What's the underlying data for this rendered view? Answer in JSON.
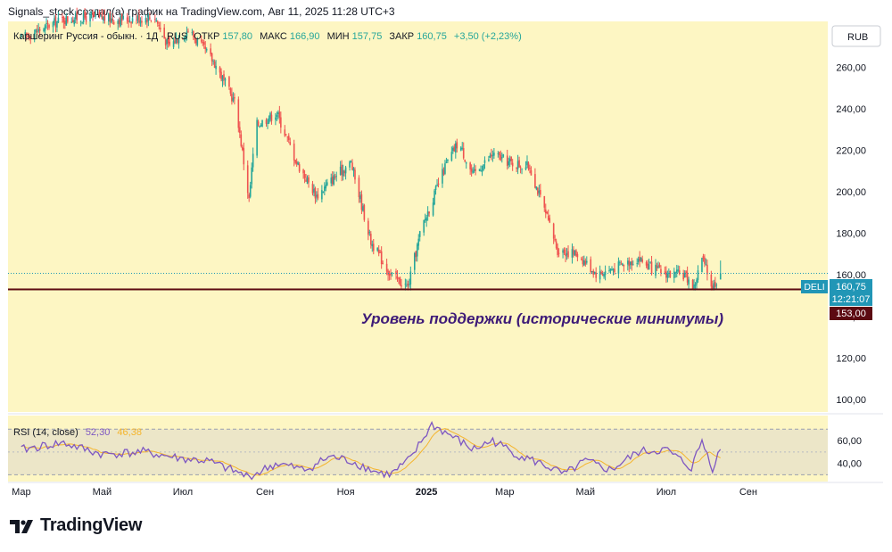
{
  "header": {
    "caption": "Signals_stock создал(а) график на TradingView.com, Авг 11, 2025 11:28 UTC+3"
  },
  "legend": {
    "instrument": "Каршеринг Руссия - обыкн. · 1Д · RUS",
    "open_label": "ОТКР",
    "open_value": "157,80",
    "high_label": "МАКС",
    "high_value": "166,90",
    "low_label": "МИН",
    "low_value": "157,75",
    "close_label": "ЗАКР",
    "close_value": "160,75",
    "change": "+3,50 (+2,23%)"
  },
  "currency_button": "RUB",
  "price_tag": {
    "ticker": "DELI",
    "price": "160,75",
    "countdown": "12:21:07"
  },
  "support_tag": "153,00",
  "annotation": "Уровень поддержки (исторические минимумы)",
  "rsi": {
    "title": "RSI (14, close)",
    "value": "52,30",
    "ma_value": "46,38"
  },
  "brand": "TradingView",
  "colors": {
    "panel_bg": "#fdf6c3",
    "up": "#26a69a",
    "down": "#ef5350",
    "support_line": "#5c0a12",
    "annotation": "#3d1a78",
    "rsi_line": "#7e57c2",
    "rsi_ma": "#f5b52c",
    "rsi_band": "#ece6c8",
    "price_tag": "#2196b6"
  },
  "chart_data": {
    "type": "candlestick",
    "title": "Каршеринг Руссия - обыкн.",
    "timeframe": "1Д",
    "currency": "RUB",
    "y_ticks": [
      "100,00",
      "120,00",
      "140,00",
      "160,00",
      "180,00",
      "200,00",
      "220,00",
      "240,00",
      "260,00"
    ],
    "ylim": [
      94,
      282
    ],
    "x_ticks": [
      "Мар",
      "Май",
      "Июл",
      "Сен",
      "Ноя",
      "2025",
      "Мар",
      "Май",
      "Июл",
      "Сен"
    ],
    "support_level": 153.0,
    "last_price": 160.75,
    "price_path": [
      [
        "2024-03-01",
        274
      ],
      [
        "2024-03-15",
        278
      ],
      [
        "2024-04-01",
        283
      ],
      [
        "2024-04-20",
        284
      ],
      [
        "2024-05-15",
        283
      ],
      [
        "2024-06-10",
        284
      ],
      [
        "2024-06-20",
        270
      ],
      [
        "2024-07-05",
        278
      ],
      [
        "2024-07-25",
        262
      ],
      [
        "2024-08-10",
        242
      ],
      [
        "2024-08-20",
        196
      ],
      [
        "2024-08-25",
        232
      ],
      [
        "2024-09-10",
        238
      ],
      [
        "2024-09-25",
        214
      ],
      [
        "2024-10-10",
        198
      ],
      [
        "2024-10-25",
        208
      ],
      [
        "2024-11-05",
        214
      ],
      [
        "2024-11-20",
        176
      ],
      [
        "2024-12-05",
        160
      ],
      [
        "2024-12-18",
        154
      ],
      [
        "2024-12-28",
        182
      ],
      [
        "2025-01-15",
        212
      ],
      [
        "2025-01-25",
        224
      ],
      [
        "2025-02-05",
        208
      ],
      [
        "2025-02-20",
        218
      ],
      [
        "2025-03-05",
        214
      ],
      [
        "2025-03-20",
        212
      ],
      [
        "2025-04-10",
        172
      ],
      [
        "2025-04-25",
        170
      ],
      [
        "2025-05-10",
        160
      ],
      [
        "2025-05-25",
        164
      ],
      [
        "2025-06-10",
        168
      ],
      [
        "2025-06-20",
        163
      ],
      [
        "2025-07-05",
        160
      ],
      [
        "2025-07-15",
        160
      ],
      [
        "2025-07-22",
        154
      ],
      [
        "2025-07-28",
        168
      ],
      [
        "2025-08-05",
        154
      ],
      [
        "2025-08-11",
        160.75
      ]
    ],
    "rsi_ticks": [
      "40,00",
      "60,00"
    ],
    "rsi_ylim": [
      24,
      82
    ],
    "rsi_path": [
      [
        "2024-03-01",
        52
      ],
      [
        "2024-04-01",
        58
      ],
      [
        "2024-05-01",
        48
      ],
      [
        "2024-06-01",
        50
      ],
      [
        "2024-07-01",
        44
      ],
      [
        "2024-07-20",
        42
      ],
      [
        "2024-08-20",
        28
      ],
      [
        "2024-09-10",
        40
      ],
      [
        "2024-10-01",
        34
      ],
      [
        "2024-10-20",
        46
      ],
      [
        "2024-11-05",
        42
      ],
      [
        "2024-11-25",
        32
      ],
      [
        "2024-12-05",
        30
      ],
      [
        "2024-12-20",
        44
      ],
      [
        "2025-01-05",
        74
      ],
      [
        "2025-01-20",
        64
      ],
      [
        "2025-02-05",
        52
      ],
      [
        "2025-02-20",
        60
      ],
      [
        "2025-03-10",
        48
      ],
      [
        "2025-04-01",
        38
      ],
      [
        "2025-04-15",
        30
      ],
      [
        "2025-05-01",
        42
      ],
      [
        "2025-05-20",
        34
      ],
      [
        "2025-06-10",
        50
      ],
      [
        "2025-07-01",
        52
      ],
      [
        "2025-07-20",
        36
      ],
      [
        "2025-07-28",
        60
      ],
      [
        "2025-08-05",
        36
      ],
      [
        "2025-08-11",
        52
      ]
    ]
  }
}
